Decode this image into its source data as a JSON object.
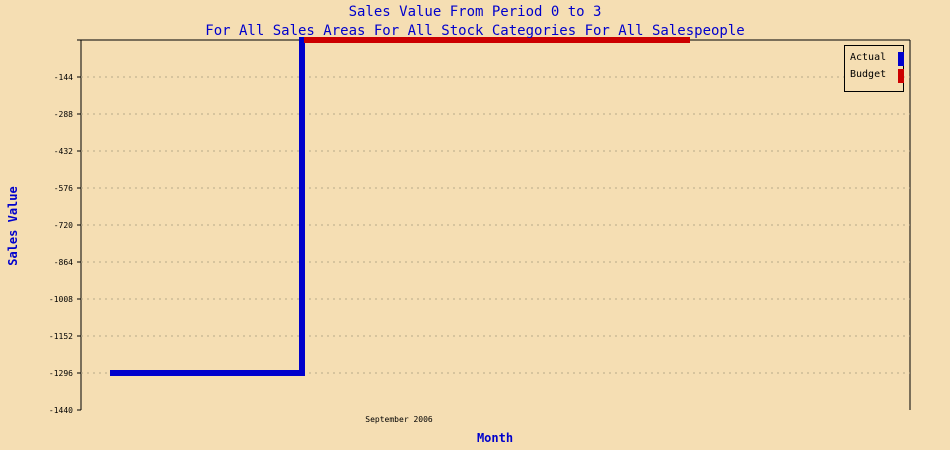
{
  "chart_data": {
    "type": "line",
    "title": "Sales Value From Period 0 to 3",
    "subtitle": "For All Sales Areas For All Stock Categories For All Salespeople",
    "xlabel": "Month",
    "ylabel": "Sales Value",
    "categories": [
      "",
      "September 2006",
      ""
    ],
    "series": [
      {
        "name": "Actual",
        "color": "#0000cc",
        "values": [
          -1296,
          0,
          0
        ]
      },
      {
        "name": "Budget",
        "color": "#cc0000",
        "values": [
          null,
          0,
          0
        ]
      }
    ],
    "yticks": [
      0,
      -144,
      -288,
      -432,
      -576,
      -720,
      -864,
      -1008,
      -1152,
      -1296,
      -1440
    ],
    "ytick_labels": [
      "",
      "-144",
      "-288",
      "-432",
      "-576",
      "-720",
      "-864",
      "-1008",
      "-1152",
      "-1296",
      "-1440"
    ],
    "ylim": [
      -1440,
      0
    ],
    "grid": true,
    "legend_position": "top-right"
  }
}
